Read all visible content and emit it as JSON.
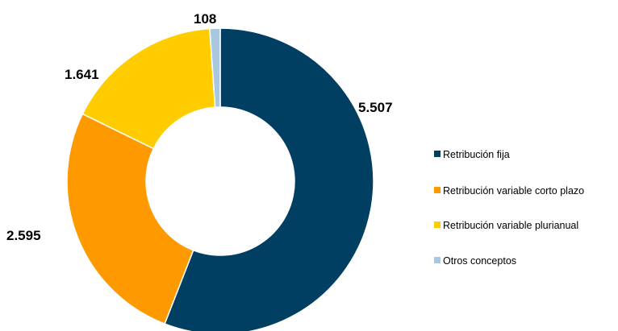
{
  "chart_data": {
    "type": "pie",
    "variant": "donut",
    "title": "",
    "categories": [
      "Retribución fija",
      "Retribución variable corto plazo",
      "Retribución variable plurianual",
      "Otros conceptos"
    ],
    "values": [
      5507,
      2595,
      1641,
      108
    ],
    "data_labels": [
      "5.507",
      "2.595",
      "1.641",
      "108"
    ],
    "colors": [
      "#003F62",
      "#FF9900",
      "#FFCC00",
      "#A9C8E0"
    ],
    "legend_position": "right"
  }
}
